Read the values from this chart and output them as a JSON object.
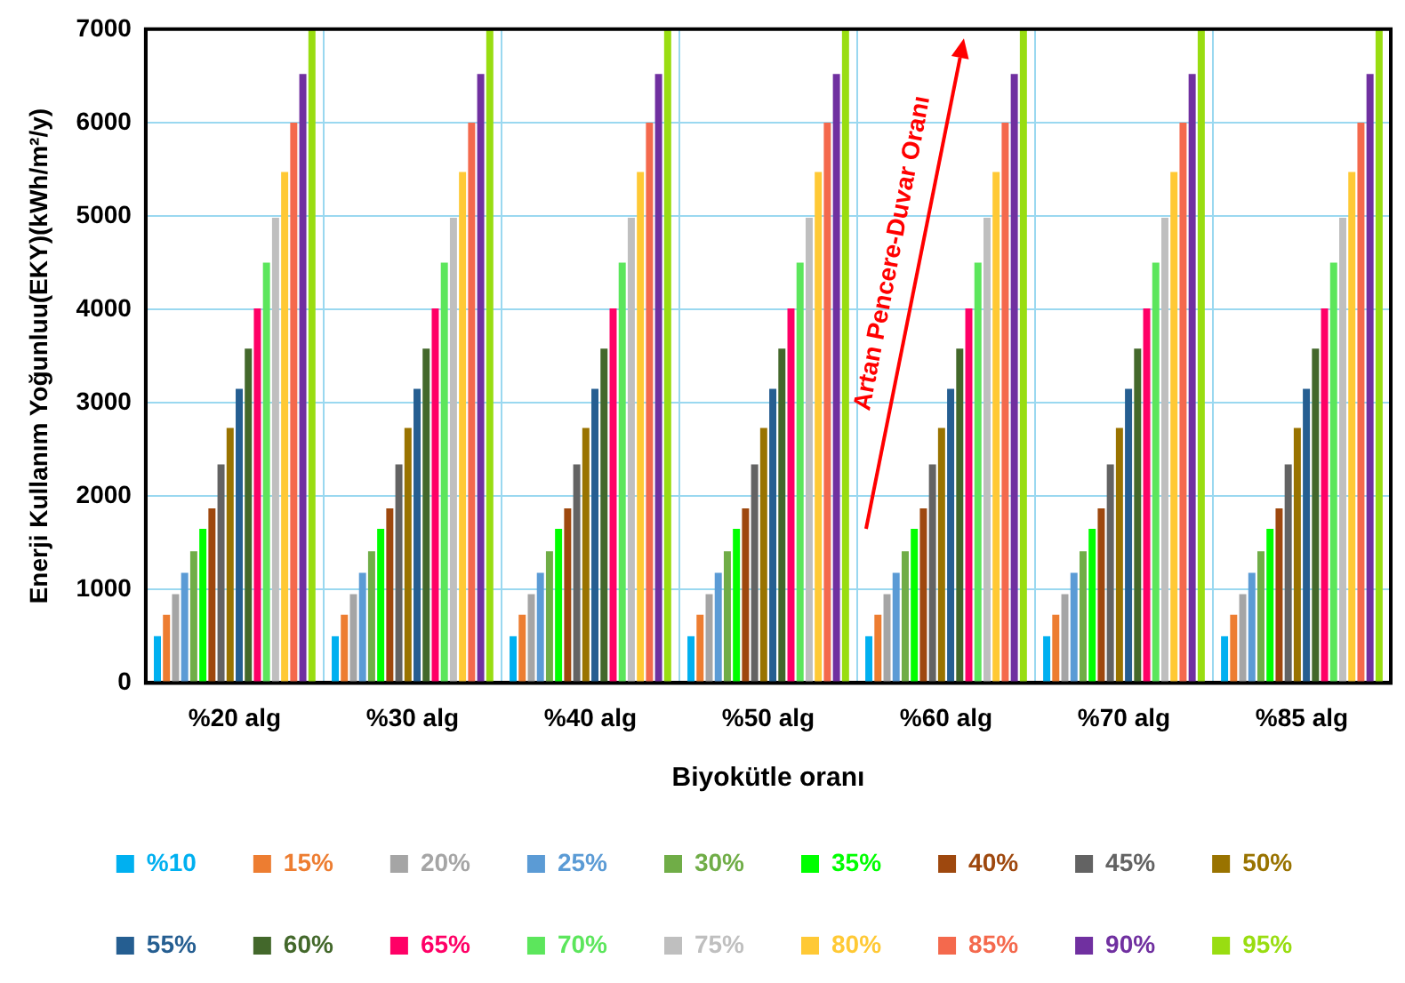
{
  "chart_data": {
    "type": "bar",
    "xlabel": "Biyokütle oranı",
    "ylabel": "Enerji Kullanım Yoğunluu(EKY)(kWh/m²/y)",
    "categories": [
      "%20 alg",
      "%30 alg",
      "%40 alg",
      "%50 alg",
      "%60 alg",
      "%70 alg",
      "%85 alg"
    ],
    "ylim": [
      0,
      7000
    ],
    "yticks": [
      0,
      1000,
      2000,
      3000,
      4000,
      5000,
      6000,
      7000
    ],
    "grid": true,
    "legend": "bottom",
    "annotations": [
      "Artan Pencere-Duvar Oranı"
    ],
    "series": [
      {
        "name": "%10",
        "color": "#00b0f0",
        "values": [
          500,
          500,
          500,
          500,
          500,
          500,
          500
        ]
      },
      {
        "name": "15%",
        "color": "#ed7d31",
        "values": [
          730,
          730,
          730,
          730,
          730,
          730,
          730
        ]
      },
      {
        "name": "20%",
        "color": "#a5a5a5",
        "values": [
          950,
          950,
          950,
          950,
          950,
          950,
          950
        ]
      },
      {
        "name": "25%",
        "color": "#5b9bd5",
        "values": [
          1180,
          1180,
          1180,
          1180,
          1180,
          1180,
          1180
        ]
      },
      {
        "name": "30%",
        "color": "#70ad47",
        "values": [
          1410,
          1410,
          1410,
          1410,
          1410,
          1410,
          1410
        ]
      },
      {
        "name": "35%",
        "color": "#00ff00",
        "values": [
          1650,
          1650,
          1650,
          1650,
          1650,
          1650,
          1650
        ]
      },
      {
        "name": "40%",
        "color": "#9e480e",
        "values": [
          1870,
          1870,
          1870,
          1870,
          1870,
          1870,
          1870
        ]
      },
      {
        "name": "45%",
        "color": "#636363",
        "values": [
          2340,
          2340,
          2340,
          2340,
          2340,
          2340,
          2340
        ]
      },
      {
        "name": "50%",
        "color": "#997300",
        "values": [
          2730,
          2730,
          2730,
          2730,
          2730,
          2730,
          2730
        ]
      },
      {
        "name": "55%",
        "color": "#255e91",
        "values": [
          3150,
          3150,
          3150,
          3150,
          3150,
          3150,
          3150
        ]
      },
      {
        "name": "60%",
        "color": "#43682b",
        "values": [
          3580,
          3580,
          3580,
          3580,
          3580,
          3580,
          3580
        ]
      },
      {
        "name": "65%",
        "color": "#ff0066",
        "values": [
          4010,
          4010,
          4010,
          4010,
          4010,
          4010,
          4010
        ]
      },
      {
        "name": "70%",
        "color": "#5ce65c",
        "values": [
          4500,
          4500,
          4500,
          4500,
          4500,
          4500,
          4500
        ]
      },
      {
        "name": "75%",
        "color": "#bfbfbf",
        "values": [
          4980,
          4980,
          4980,
          4980,
          4980,
          4980,
          4980
        ]
      },
      {
        "name": "80%",
        "color": "#ffc935",
        "values": [
          5470,
          5470,
          5470,
          5470,
          5470,
          5470,
          5470
        ]
      },
      {
        "name": "85%",
        "color": "#f4694d",
        "values": [
          6000,
          6000,
          6000,
          6000,
          6000,
          6000,
          6000
        ]
      },
      {
        "name": "90%",
        "color": "#7030a0",
        "values": [
          6520,
          6520,
          6520,
          6520,
          6520,
          6520,
          6520
        ]
      },
      {
        "name": "95%",
        "color": "#99dd11",
        "values": [
          7000,
          7000,
          7000,
          7000,
          7000,
          7000,
          7000
        ]
      }
    ]
  }
}
